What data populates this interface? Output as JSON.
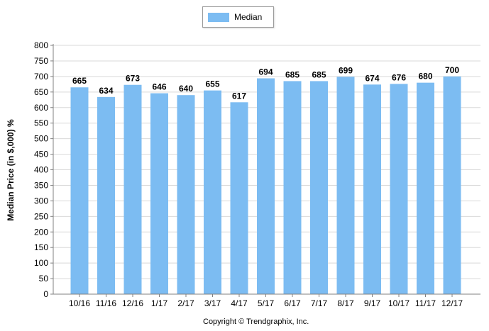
{
  "legend": {
    "label": "Median"
  },
  "footer": {
    "copyright": "Copyright © Trendgraphix, Inc."
  },
  "colors": {
    "bar": "#7cbcf2",
    "grid": "#d9d9d9",
    "axis": "#808080"
  },
  "chart_data": {
    "type": "bar",
    "title": "",
    "xlabel": "",
    "ylabel": "Median Price (in $,000) %",
    "categories": [
      "10/16",
      "11/16",
      "12/16",
      "1/17",
      "2/17",
      "3/17",
      "4/17",
      "5/17",
      "6/17",
      "7/17",
      "8/17",
      "9/17",
      "10/17",
      "11/17",
      "12/17"
    ],
    "series": [
      {
        "name": "Median",
        "values": [
          665,
          634,
          673,
          646,
          640,
          655,
          617,
          694,
          685,
          685,
          699,
          674,
          676,
          680,
          700
        ]
      }
    ],
    "ylim": [
      0,
      800
    ],
    "yticks": [
      0,
      50,
      100,
      150,
      200,
      250,
      300,
      350,
      400,
      450,
      500,
      550,
      600,
      650,
      700,
      750,
      800
    ],
    "grid": true,
    "legend_position": "top-center",
    "data_labels": true
  }
}
